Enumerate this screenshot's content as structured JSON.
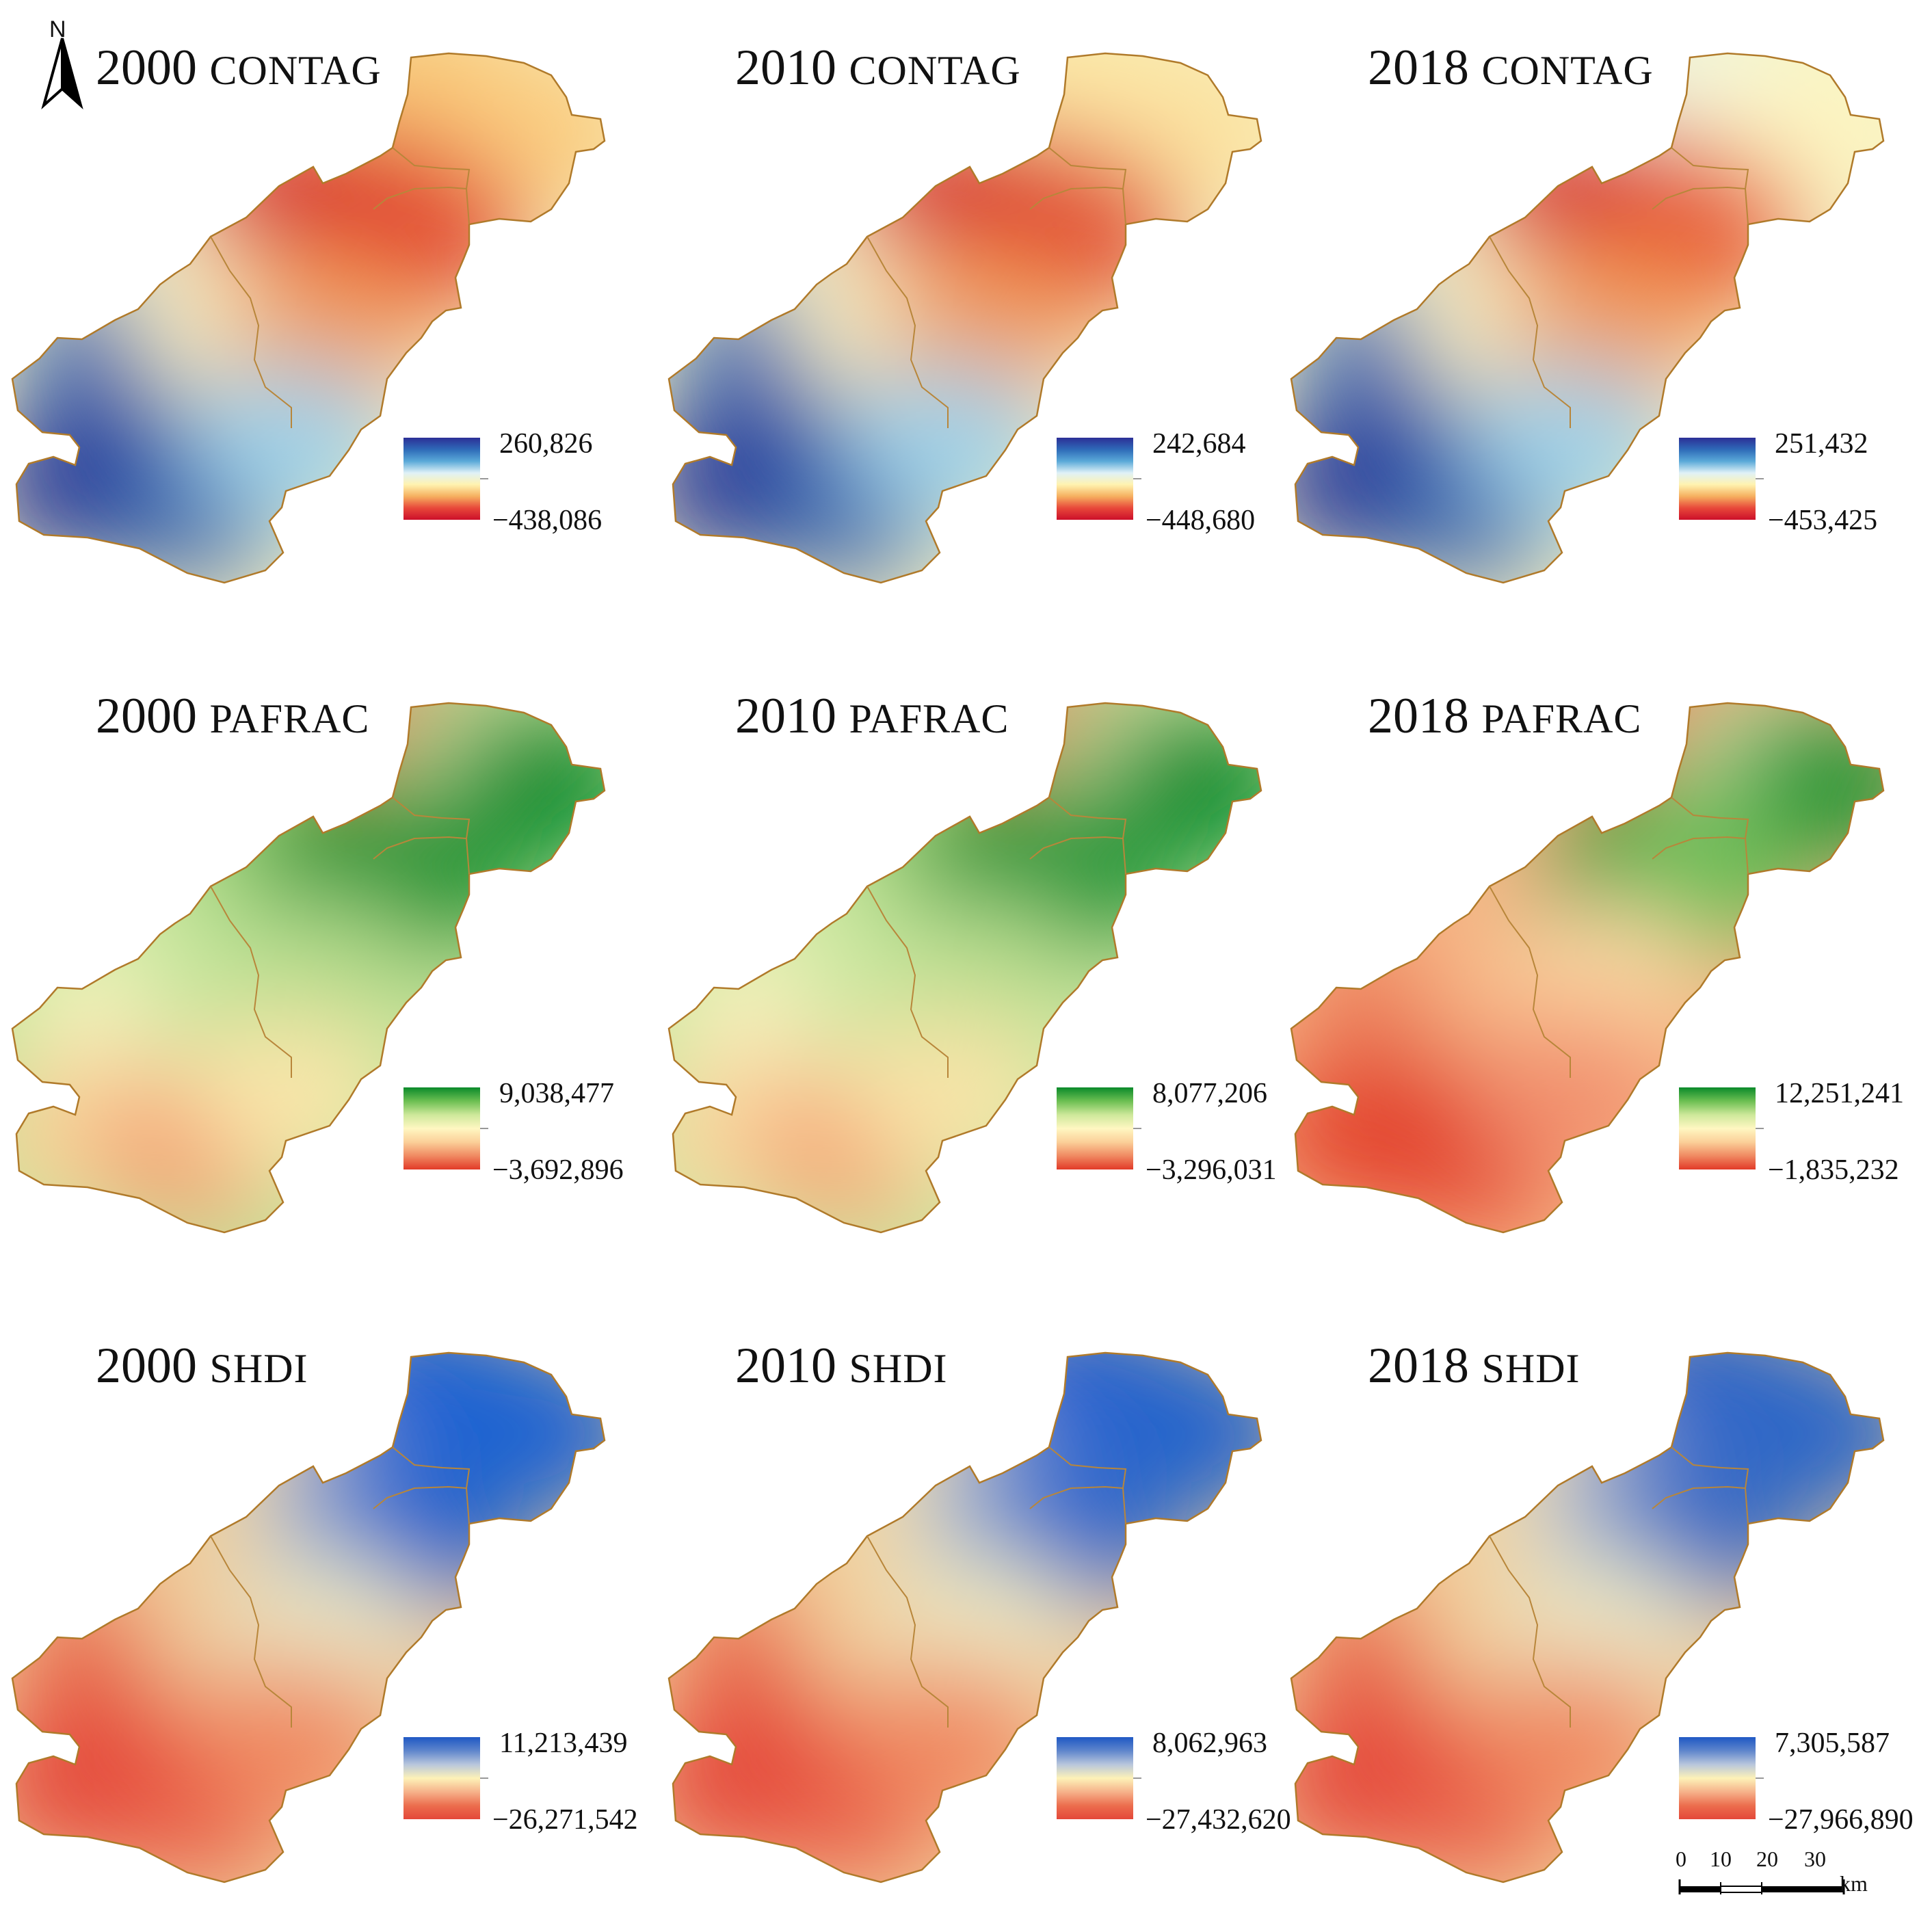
{
  "compass": {
    "letter": "N",
    "icon": "north-arrow-icon"
  },
  "scale_bar": {
    "ticks": [
      "0",
      "10",
      "20",
      "30"
    ],
    "unit": "km"
  },
  "panels": [
    {
      "year": "2000",
      "metric": "CONTAG",
      "scheme": "blue-red",
      "legend_max": "260,826",
      "legend_min": "−438,086",
      "stops": [
        "#2c2f96",
        "#2e6ab8",
        "#5aa9d8",
        "#dff1f7",
        "#fff3b0",
        "#f6b060",
        "#e8483a",
        "#cc0f2a"
      ],
      "field": [
        [
          "#f9c470",
          "#fac878",
          "#fbcd80"
        ],
        [
          "#d81a2c",
          "#d41327",
          "#e2402e"
        ],
        [
          "#2e64b4",
          "#f4eec2",
          "#f39c58"
        ],
        [
          "#2d3a9a",
          "#2f5cac",
          "#9fd1e8"
        ]
      ]
    },
    {
      "year": "2010",
      "metric": "CONTAG",
      "scheme": "blue-red",
      "legend_max": "242,684",
      "legend_min": "−448,680",
      "stops": [
        "#2c2f96",
        "#2e6ab8",
        "#5aa9d8",
        "#dff1f7",
        "#fff3b0",
        "#f6b060",
        "#e8483a",
        "#cc0f2a"
      ],
      "field": [
        [
          "#fde6a0",
          "#fde8a6",
          "#fce3a0"
        ],
        [
          "#d81a2c",
          "#d41327",
          "#e24a30"
        ],
        [
          "#2e64b4",
          "#f4eec2",
          "#f39c58"
        ],
        [
          "#2d3a9a",
          "#2f5cac",
          "#9fd1e8"
        ]
      ]
    },
    {
      "year": "2018",
      "metric": "CONTAG",
      "scheme": "blue-red",
      "legend_max": "251,432",
      "legend_min": "−453,425",
      "stops": [
        "#2c2f96",
        "#2e6ab8",
        "#5aa9d8",
        "#dff1f7",
        "#fff3b0",
        "#f6b060",
        "#e8483a",
        "#cc0f2a"
      ],
      "field": [
        [
          "#eef6e6",
          "#f4f8d8",
          "#fdf6c2"
        ],
        [
          "#d81a2c",
          "#d41327",
          "#e85a36"
        ],
        [
          "#2e64b4",
          "#f4eec2",
          "#f39c58"
        ],
        [
          "#2d3a9a",
          "#2f5cac",
          "#9fd1e8"
        ]
      ]
    },
    {
      "year": "2000",
      "metric": "PAFRAC",
      "scheme": "green-red",
      "legend_max": "9,038,477",
      "legend_min": "−3,692,896",
      "stops": [
        "#0a8a2a",
        "#6cbf52",
        "#cde89a",
        "#fff7c2",
        "#fbcf98",
        "#f08a62",
        "#e23a28"
      ],
      "field": [
        [
          "#e23a28",
          "#bfe3a0",
          "#0f8e30"
        ],
        [
          "#8ccc6c",
          "#13902f",
          "#1b9434"
        ],
        [
          "#f6f4c0",
          "#c6e59c",
          "#b2dc8c"
        ],
        [
          "#f8d39a",
          "#f4a274",
          "#f9e6aa"
        ]
      ]
    },
    {
      "year": "2010",
      "metric": "PAFRAC",
      "scheme": "green-red",
      "legend_max": "8,077,206",
      "legend_min": "−3,296,031",
      "stops": [
        "#0a8a2a",
        "#6cbf52",
        "#cde89a",
        "#fff7c2",
        "#fbcf98",
        "#f08a62",
        "#e23a28"
      ],
      "field": [
        [
          "#e23a28",
          "#bfe3a0",
          "#0f8e30"
        ],
        [
          "#9ad276",
          "#13902f",
          "#22983a"
        ],
        [
          "#f8f2c0",
          "#cde8a2",
          "#b8de90"
        ],
        [
          "#f9d8a0",
          "#f5a878",
          "#f8e4a8"
        ]
      ]
    },
    {
      "year": "2018",
      "metric": "PAFRAC",
      "scheme": "green-red",
      "legend_max": "12,251,241",
      "legend_min": "−1,835,232",
      "stops": [
        "#0a8a2a",
        "#6cbf52",
        "#cde89a",
        "#fff7c2",
        "#fbcf98",
        "#f08a62",
        "#e23a28"
      ],
      "field": [
        [
          "#e23a28",
          "#cbe6a8",
          "#1a9636"
        ],
        [
          "#f7c08e",
          "#13902f",
          "#6cbf56"
        ],
        [
          "#ec7a58",
          "#f6b484",
          "#f9d6a2"
        ],
        [
          "#e44a32",
          "#e33e2a",
          "#f29270"
        ]
      ]
    },
    {
      "year": "2000",
      "metric": "SHDI",
      "scheme": "blue-red",
      "legend_max": "11,213,439",
      "legend_min": "−26,271,542",
      "stops": [
        "#1f58c4",
        "#5f86cc",
        "#b8c6dc",
        "#fdf2b8",
        "#f6b28a",
        "#ec6e4e",
        "#e4473a"
      ],
      "field": [
        [
          "#0a5ad2",
          "#0d5ed4",
          "#1a64d2"
        ],
        [
          "#f2dfa8",
          "#8ea8d4",
          "#1e62cc"
        ],
        [
          "#e85c42",
          "#f0c896",
          "#e8e6c2"
        ],
        [
          "#e4473a",
          "#e85442",
          "#f08a62"
        ]
      ]
    },
    {
      "year": "2010",
      "metric": "SHDI",
      "scheme": "blue-red",
      "legend_max": "8,062,963",
      "legend_min": "−27,432,620",
      "stops": [
        "#1f58c4",
        "#5f86cc",
        "#b8c6dc",
        "#fdf2b8",
        "#f6b28a",
        "#ec6e4e",
        "#e4473a"
      ],
      "field": [
        [
          "#1558d0",
          "#1c5ed0",
          "#2464cc"
        ],
        [
          "#f4e6b2",
          "#9ab2d6",
          "#2a66ca"
        ],
        [
          "#e85c42",
          "#f2cc98",
          "#ece8c0"
        ],
        [
          "#e4473a",
          "#e85442",
          "#f08a62"
        ]
      ]
    },
    {
      "year": "2018",
      "metric": "SHDI",
      "scheme": "blue-red",
      "legend_max": "7,305,587",
      "legend_min": "−27,966,890",
      "stops": [
        "#1f58c4",
        "#5f86cc",
        "#b8c6dc",
        "#fdf2b8",
        "#f6b28a",
        "#ec6e4e",
        "#e4473a"
      ],
      "field": [
        [
          "#1e5cc8",
          "#2662c8",
          "#2a66c8"
        ],
        [
          "#f0e2b4",
          "#a2b6d6",
          "#3068c4"
        ],
        [
          "#e85c42",
          "#f2cc98",
          "#eae8c4"
        ],
        [
          "#e4473a",
          "#e85442",
          "#f08a62"
        ]
      ]
    }
  ]
}
